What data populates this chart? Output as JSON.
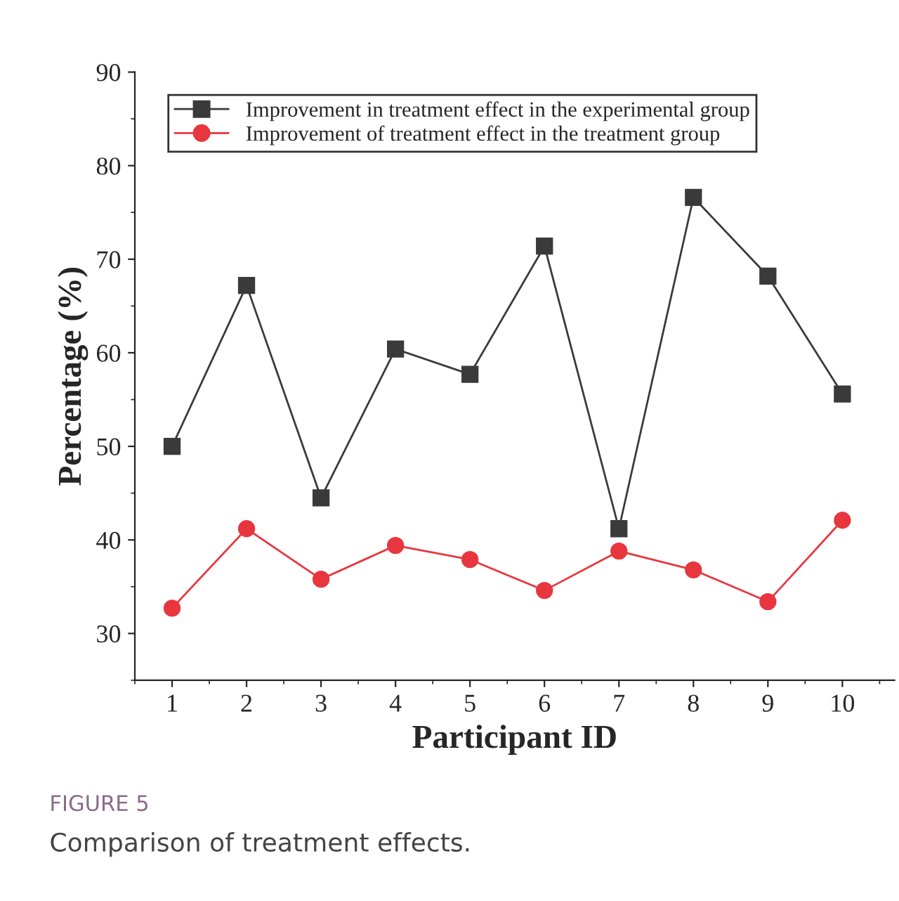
{
  "chart_data": {
    "type": "line",
    "xlabel": "Participant ID",
    "ylabel": "Percentage (%)",
    "x": [
      1,
      2,
      3,
      4,
      5,
      6,
      7,
      8,
      9,
      10
    ],
    "series": [
      {
        "name": "Improvement in treatment effect in the experimental group",
        "color": "#3a3a3a",
        "marker": "square",
        "values": [
          50.0,
          67.2,
          44.5,
          60.4,
          57.7,
          71.4,
          41.2,
          76.6,
          68.2,
          55.6
        ]
      },
      {
        "name": "Improvement of treatment effect in the treatment group",
        "color": "#e8363f",
        "marker": "circle",
        "values": [
          32.7,
          41.2,
          35.8,
          39.4,
          37.9,
          34.6,
          38.8,
          36.8,
          33.4,
          42.1
        ]
      }
    ],
    "xlim": [
      0.5,
      10.7
    ],
    "xticks": [
      1,
      2,
      3,
      4,
      5,
      6,
      7,
      8,
      9,
      10
    ],
    "ylim": [
      25,
      90
    ],
    "yticks": [
      30,
      40,
      50,
      60,
      70,
      80,
      90
    ],
    "legend": "top left",
    "grid": false,
    "line_style": "solid",
    "annotations": [
      "FIGURE 5",
      "Comparison of treatment effects."
    ]
  }
}
